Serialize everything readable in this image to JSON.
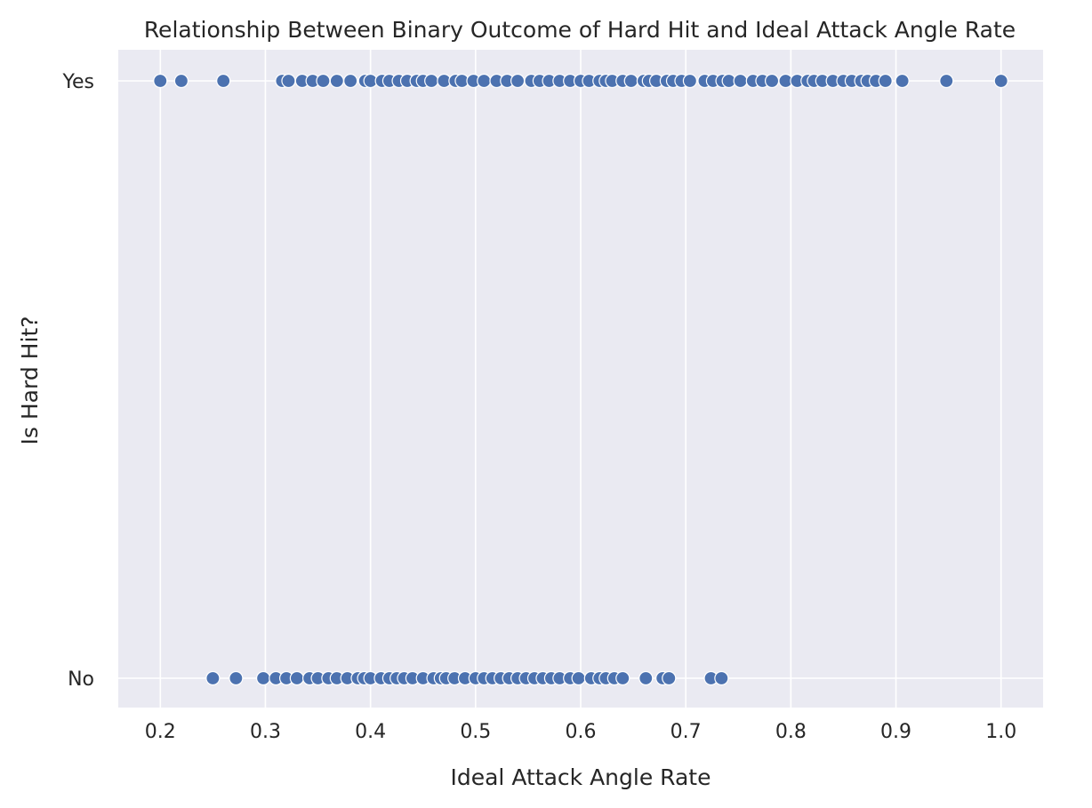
{
  "chart_data": {
    "type": "scatter",
    "title": "Relationship Between Binary Outcome of Hard Hit and Ideal Attack Angle Rate",
    "xlabel": "Ideal Attack Angle Rate",
    "ylabel": "Is Hard Hit?",
    "xlim": [
      0.16,
      1.04
    ],
    "x_ticks": [
      "0.2",
      "0.3",
      "0.4",
      "0.5",
      "0.6",
      "0.7",
      "0.8",
      "0.9",
      "1.0"
    ],
    "y_categories": [
      "No",
      "Yes"
    ],
    "grid": true,
    "colors": {
      "background": "#eaeaf2",
      "point": "#4c72b0",
      "grid": "#ffffff"
    },
    "series": [
      {
        "category": "Yes",
        "x": [
          0.2,
          0.22,
          0.26,
          0.316,
          0.322,
          0.335,
          0.345,
          0.355,
          0.368,
          0.381,
          0.395,
          0.4,
          0.411,
          0.418,
          0.427,
          0.435,
          0.444,
          0.45,
          0.458,
          0.47,
          0.481,
          0.487,
          0.498,
          0.508,
          0.52,
          0.53,
          0.54,
          0.553,
          0.561,
          0.57,
          0.58,
          0.59,
          0.6,
          0.608,
          0.618,
          0.624,
          0.63,
          0.64,
          0.648,
          0.66,
          0.665,
          0.672,
          0.682,
          0.688,
          0.696,
          0.704,
          0.718,
          0.726,
          0.735,
          0.741,
          0.752,
          0.764,
          0.773,
          0.782,
          0.795,
          0.806,
          0.816,
          0.822,
          0.83,
          0.84,
          0.85,
          0.858,
          0.867,
          0.873,
          0.881,
          0.89,
          0.906,
          0.948,
          1.0
        ]
      },
      {
        "category": "No",
        "x": [
          0.25,
          0.272,
          0.298,
          0.31,
          0.32,
          0.33,
          0.342,
          0.35,
          0.36,
          0.368,
          0.378,
          0.388,
          0.394,
          0.4,
          0.41,
          0.418,
          0.425,
          0.432,
          0.44,
          0.45,
          0.46,
          0.467,
          0.472,
          0.48,
          0.49,
          0.5,
          0.508,
          0.516,
          0.524,
          0.532,
          0.54,
          0.548,
          0.556,
          0.564,
          0.572,
          0.58,
          0.59,
          0.598,
          0.61,
          0.618,
          0.624,
          0.632,
          0.64,
          0.662,
          0.678,
          0.684,
          0.724,
          0.734
        ]
      }
    ]
  }
}
